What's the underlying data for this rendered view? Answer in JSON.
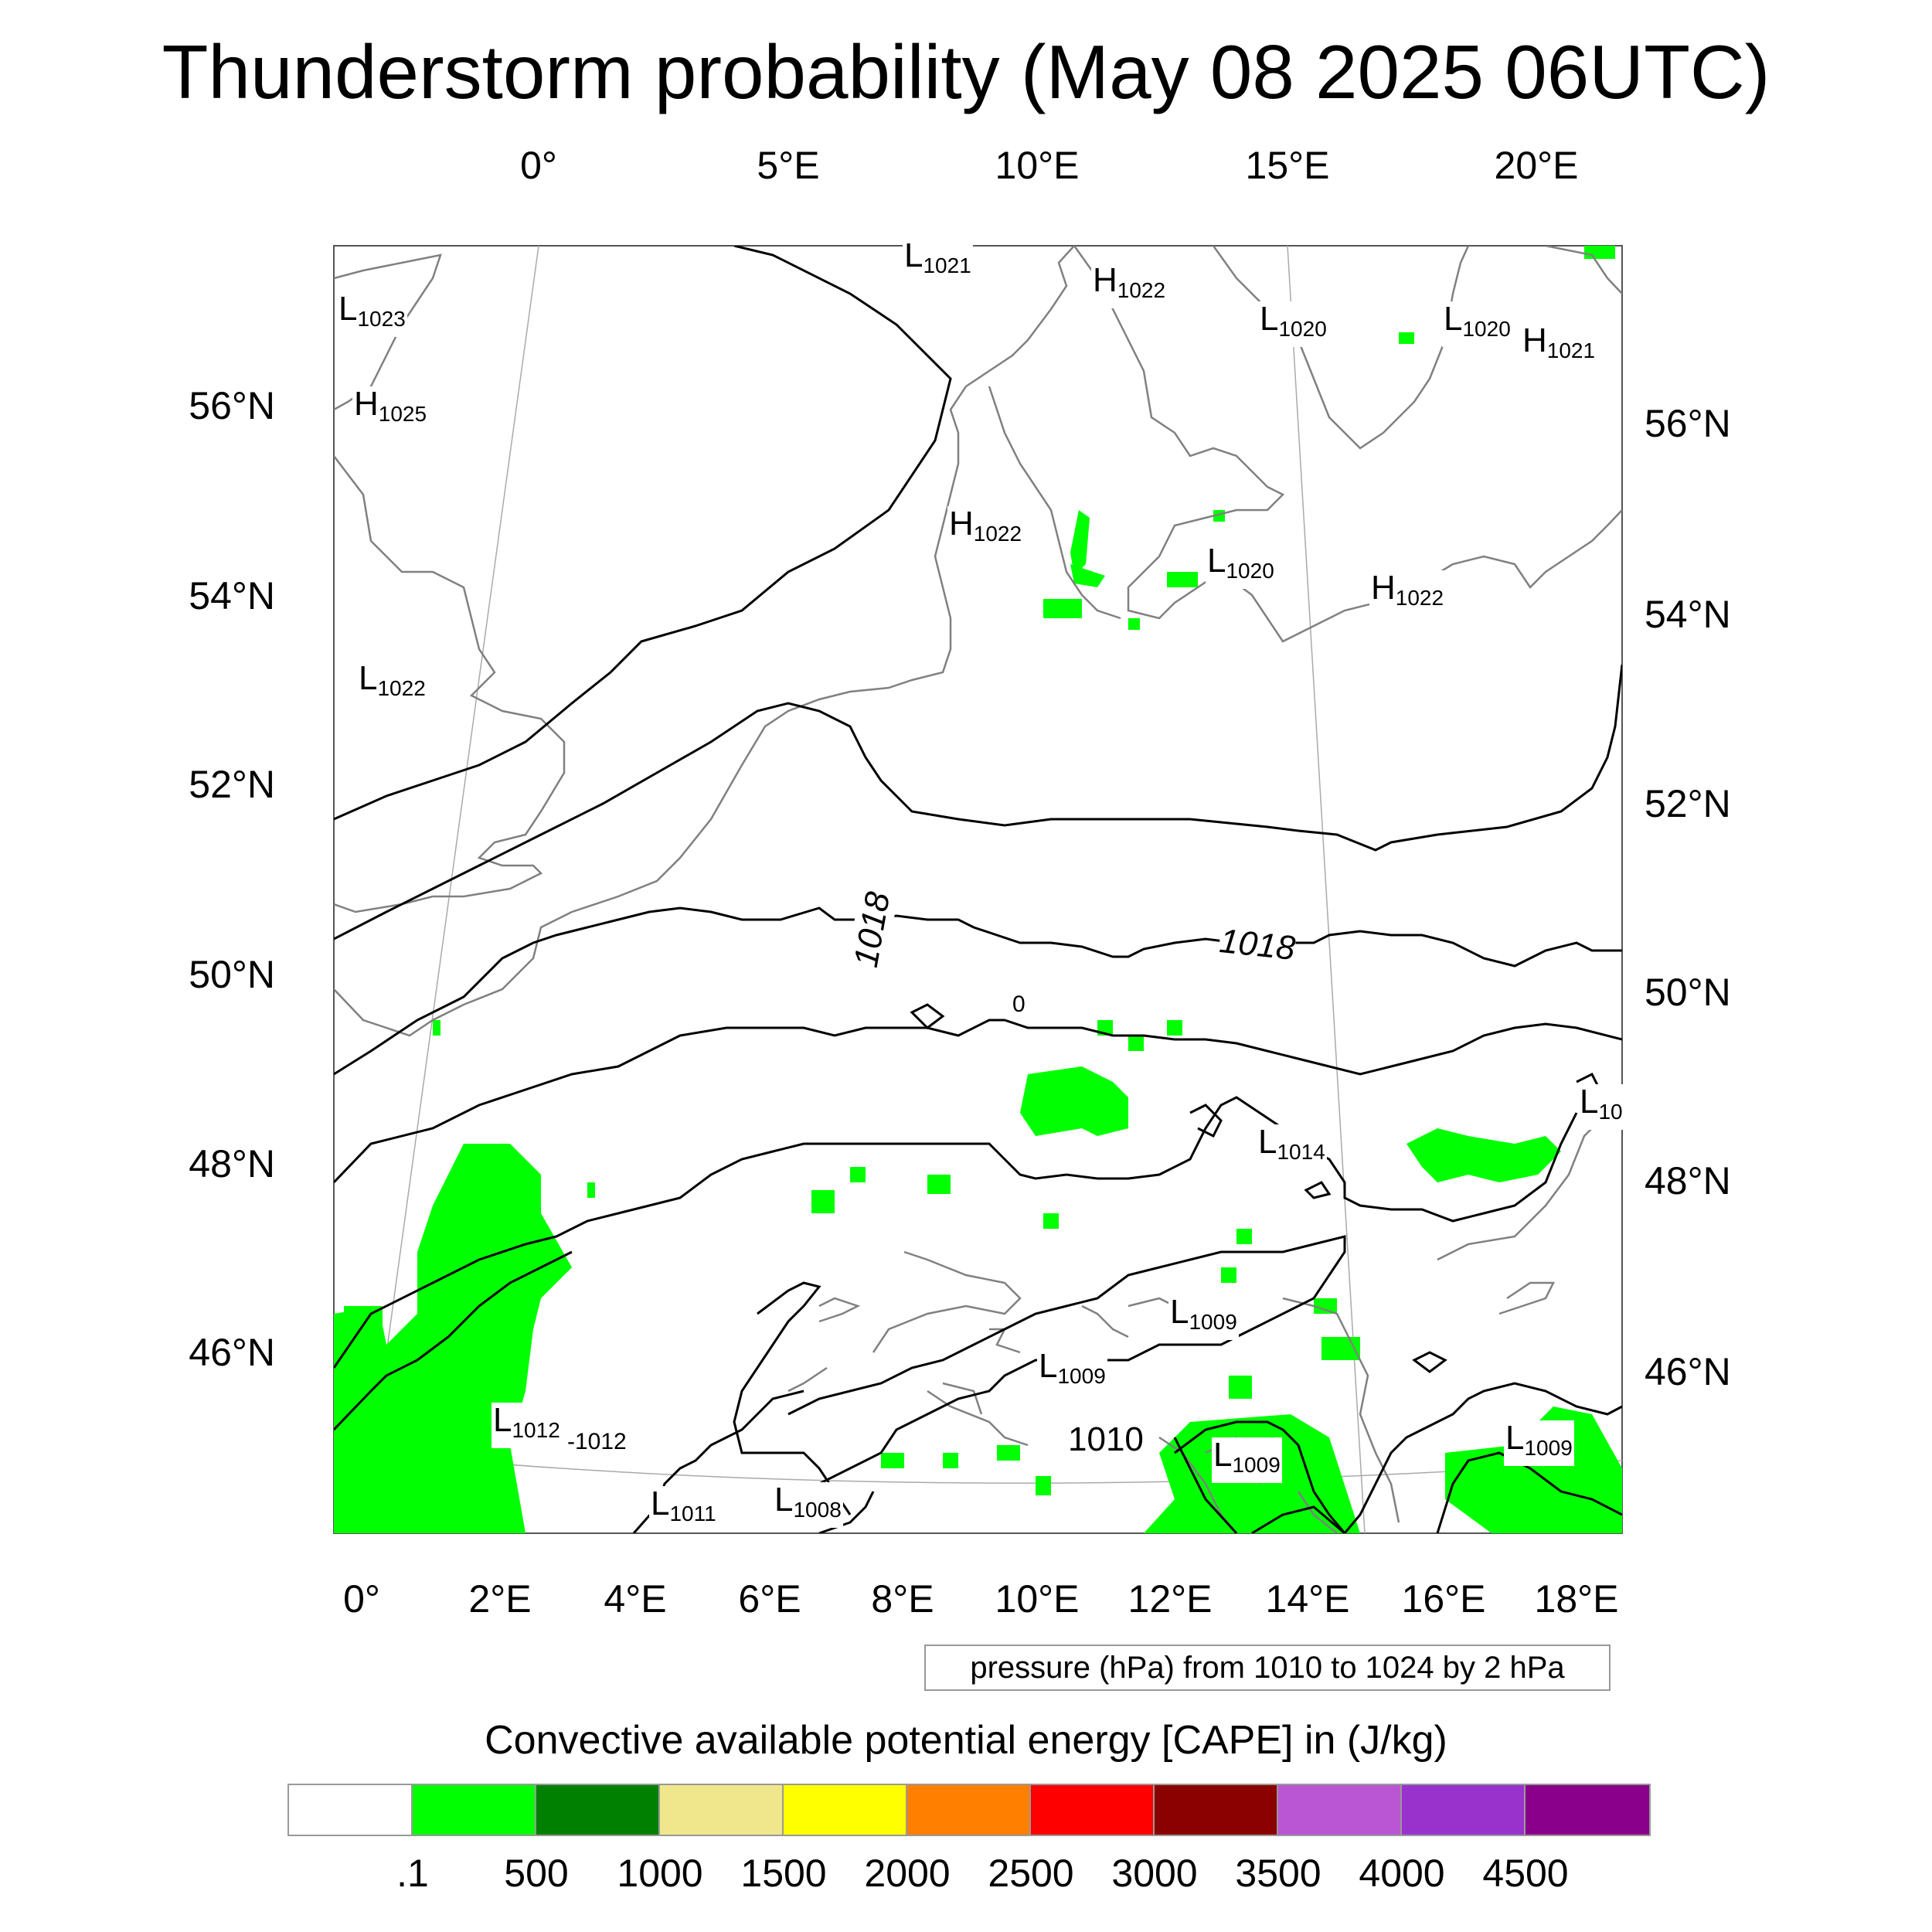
{
  "title": "Thunderstorm probability (May 08 2025 06UTC)",
  "map": {
    "top_lon_ticks": [
      "0°",
      "5°E",
      "10°E",
      "15°E",
      "20°E"
    ],
    "bottom_lon_ticks": [
      "0°",
      "2°E",
      "4°E",
      "6°E",
      "8°E",
      "10°E",
      "12°E",
      "14°E",
      "16°E",
      "18°E"
    ],
    "left_lat_ticks": [
      "56°N",
      "54°N",
      "52°N",
      "50°N",
      "48°N",
      "46°N"
    ],
    "right_lat_ticks": [
      "56°N",
      "54°N",
      "52°N",
      "50°N",
      "48°N",
      "46°N"
    ],
    "pressure_centers": [
      {
        "type": "L",
        "value": "1023"
      },
      {
        "type": "H",
        "value": "1025"
      },
      {
        "type": "L",
        "value": "1022"
      },
      {
        "type": "L",
        "value": "1021"
      },
      {
        "type": "H",
        "value": "1022"
      },
      {
        "type": "L",
        "value": "1020"
      },
      {
        "type": "L",
        "value": "1020"
      },
      {
        "type": "H",
        "value": "1021"
      },
      {
        "type": "H",
        "value": "1022"
      },
      {
        "type": "L",
        "value": "1020"
      },
      {
        "type": "H",
        "value": "1022"
      },
      {
        "type": "L",
        "value": "1014"
      },
      {
        "type": "L",
        "value": "10"
      },
      {
        "type": "L",
        "value": "1009"
      },
      {
        "type": "L",
        "value": "1009"
      },
      {
        "type": "L",
        "value": "1012"
      },
      {
        "type": "L",
        "value": "1011"
      },
      {
        "type": "L",
        "value": "1008"
      },
      {
        "type": "L",
        "value": "1009"
      },
      {
        "type": "L",
        "value": "1009"
      }
    ],
    "floating_labels": {
      "minus_1012": "-1012",
      "small_0": "0"
    },
    "contour_labels": [
      "1018",
      "1018",
      "1010"
    ],
    "info_text": "pressure (hPa) from 1010 to 1024 by 2 hPa"
  },
  "colorbar": {
    "title": "Convective available potential energy [CAPE] in (J/kg)",
    "colors": [
      "#ffffff",
      "#00ff00",
      "#008000",
      "#f0e68c",
      "#ffff00",
      "#ff8000",
      "#ff0000",
      "#8b0000",
      "#ba55d3",
      "#9932cc",
      "#8b008b"
    ],
    "labels": [
      ".1",
      "500",
      "1000",
      "1500",
      "2000",
      "2500",
      "3000",
      "3500",
      "4000",
      "4500"
    ]
  }
}
